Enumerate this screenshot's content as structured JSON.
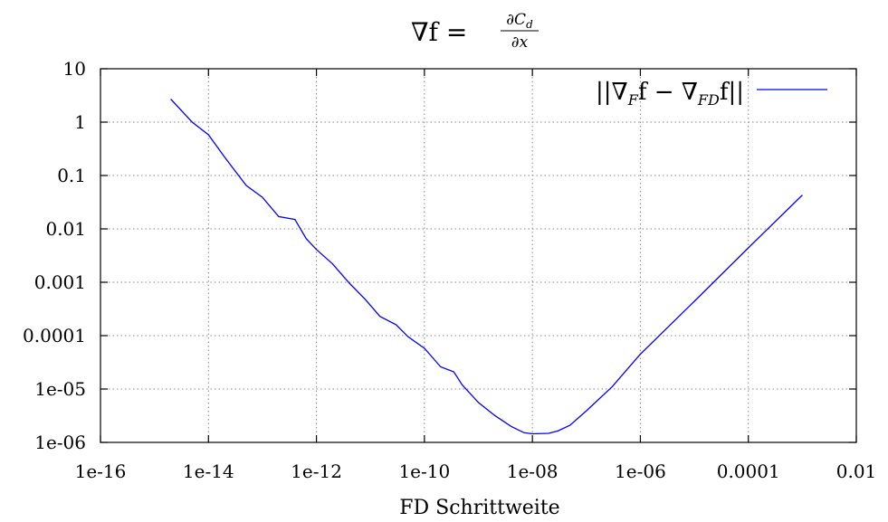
{
  "chart_data": {
    "type": "line",
    "title": {
      "lhs": "∇f = ",
      "numerator": "∂C",
      "numerator_sub": "d",
      "denominator": "∂x"
    },
    "xlabel": "FD Schrittweite",
    "ylabel": "",
    "xscale": "log",
    "yscale": "log",
    "xlim": [
      1e-16,
      0.01
    ],
    "ylim": [
      1e-06,
      10
    ],
    "grid": true,
    "legend_position": "top-right",
    "xticks": [
      {
        "value": 1e-16,
        "label": "1e-16"
      },
      {
        "value": 1e-14,
        "label": "1e-14"
      },
      {
        "value": 1e-12,
        "label": "1e-12"
      },
      {
        "value": 1e-10,
        "label": "1e-10"
      },
      {
        "value": 1e-08,
        "label": "1e-08"
      },
      {
        "value": 1e-06,
        "label": "1e-06"
      },
      {
        "value": 0.0001,
        "label": "0.0001"
      },
      {
        "value": 0.01,
        "label": "0.01"
      }
    ],
    "yticks": [
      {
        "value": 10,
        "label": "10"
      },
      {
        "value": 1,
        "label": "1"
      },
      {
        "value": 0.1,
        "label": "0.1"
      },
      {
        "value": 0.01,
        "label": "0.01"
      },
      {
        "value": 0.001,
        "label": "0.001"
      },
      {
        "value": 0.0001,
        "label": "0.0001"
      },
      {
        "value": 1e-05,
        "label": "1e-05"
      },
      {
        "value": 1e-06,
        "label": "1e-06"
      }
    ],
    "series": [
      {
        "name": "||∇_F f − ∇_FD f||",
        "legend": {
          "a": "||∇",
          "s1": "F",
          "b": "f − ∇",
          "s2": "FD",
          "c": "f||"
        },
        "color": "#0000ff",
        "x": [
          2e-15,
          5e-15,
          1e-14,
          2e-14,
          5e-14,
          1e-13,
          2e-13,
          4e-13,
          6.5e-13,
          1e-12,
          2e-12,
          4e-12,
          8e-12,
          1.5e-11,
          3e-11,
          5e-11,
          1e-10,
          2e-10,
          3.5e-10,
          5e-10,
          1e-09,
          2e-09,
          4e-09,
          7e-09,
          1e-08,
          2e-08,
          3e-08,
          5e-08,
          1e-07,
          3e-07,
          1e-06,
          1e-05,
          0.0001,
          0.001
        ],
        "y": [
          2.7,
          1.0,
          0.58,
          0.22,
          0.065,
          0.039,
          0.017,
          0.015,
          0.0065,
          0.0041,
          0.0022,
          0.00098,
          0.00048,
          0.00023,
          0.00016,
          9.5e-05,
          5.8e-05,
          2.6e-05,
          2.1e-05,
          1.2e-05,
          5.6e-06,
          3.2e-06,
          2e-06,
          1.52e-06,
          1.45e-06,
          1.48e-06,
          1.65e-06,
          2.1e-06,
          3.9e-06,
          1.1e-05,
          4.5e-05,
          0.00044,
          0.0044,
          0.043
        ]
      }
    ]
  }
}
